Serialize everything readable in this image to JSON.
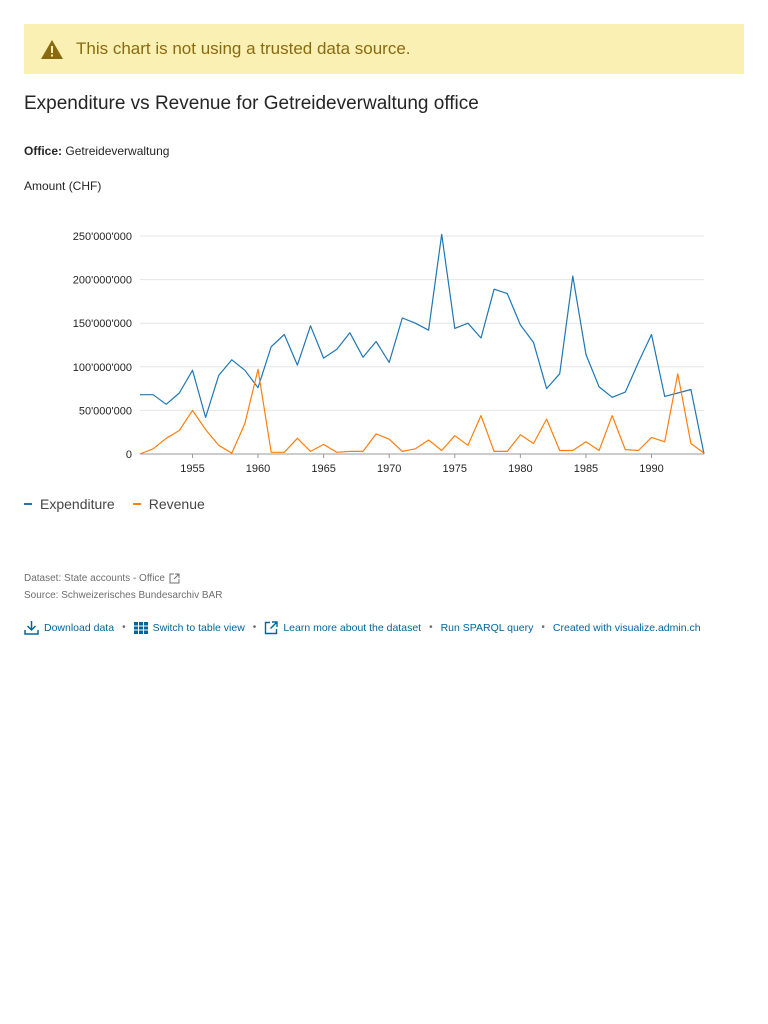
{
  "warning": {
    "text": "This chart is not using a trusted data source.",
    "icon": "warning-icon",
    "color": "#faf0b4"
  },
  "title": "Expenditure vs Revenue for Getreideverwaltung office",
  "filter": {
    "label": "Office:",
    "value": "Getreideverwaltung"
  },
  "meta": {
    "dataset": "Dataset: State accounts - Office",
    "source": "Source: Schweizerisches Bundesarchiv BAR"
  },
  "footer": {
    "download": "Download data",
    "table_view": "Switch to table view",
    "learn_more": "Learn more about the dataset",
    "sparql": "Run SPARQL query",
    "created": "Created with visualize.admin.ch"
  },
  "chart_data": {
    "type": "line",
    "ylabel": "Amount (CHF)",
    "xlim": [
      1951,
      1994
    ],
    "ylim": [
      0,
      250000000
    ],
    "yticks": [
      0,
      50000000,
      100000000,
      150000000,
      200000000,
      250000000
    ],
    "ytick_labels": [
      "0",
      "50'000'000",
      "100'000'000",
      "150'000'000",
      "200'000'000",
      "250'000'000"
    ],
    "xticks": [
      1955,
      1960,
      1965,
      1970,
      1975,
      1980,
      1985,
      1990
    ],
    "grid": true,
    "legend_position": "bottom-left",
    "x": [
      1951,
      1952,
      1953,
      1954,
      1955,
      1956,
      1957,
      1958,
      1959,
      1960,
      1961,
      1962,
      1963,
      1964,
      1965,
      1966,
      1967,
      1968,
      1969,
      1970,
      1971,
      1972,
      1973,
      1974,
      1975,
      1976,
      1977,
      1978,
      1979,
      1980,
      1981,
      1982,
      1983,
      1984,
      1985,
      1986,
      1987,
      1988,
      1989,
      1990,
      1991,
      1992,
      1993,
      1994
    ],
    "series": [
      {
        "name": "Expenditure",
        "color": "#1f77b4",
        "values": [
          68000000,
          68000000,
          57000000,
          70000000,
          96000000,
          42000000,
          90000000,
          108000000,
          96000000,
          76000000,
          123000000,
          137000000,
          102000000,
          147000000,
          110000000,
          120000000,
          139000000,
          111000000,
          129000000,
          105000000,
          156000000,
          150000000,
          142000000,
          252000000,
          144000000,
          150000000,
          133000000,
          189000000,
          184000000,
          148000000,
          128000000,
          75000000,
          92000000,
          204000000,
          114000000,
          77000000,
          65000000,
          71000000,
          105000000,
          137000000,
          66000000,
          70000000,
          74000000,
          0
        ]
      },
      {
        "name": "Revenue",
        "color": "#ff7f0e",
        "values": [
          0,
          6000000,
          18000000,
          27000000,
          50000000,
          28000000,
          10000000,
          1000000,
          35000000,
          97000000,
          2000000,
          2000000,
          18000000,
          3000000,
          11000000,
          2000000,
          3000000,
          3000000,
          23000000,
          17000000,
          3000000,
          6000000,
          16000000,
          4000000,
          21000000,
          10000000,
          44000000,
          3000000,
          3000000,
          22000000,
          12000000,
          40000000,
          4000000,
          4000000,
          14000000,
          4000000,
          44000000,
          5000000,
          4000000,
          19000000,
          14000000,
          92000000,
          12000000,
          1000000
        ]
      }
    ]
  }
}
